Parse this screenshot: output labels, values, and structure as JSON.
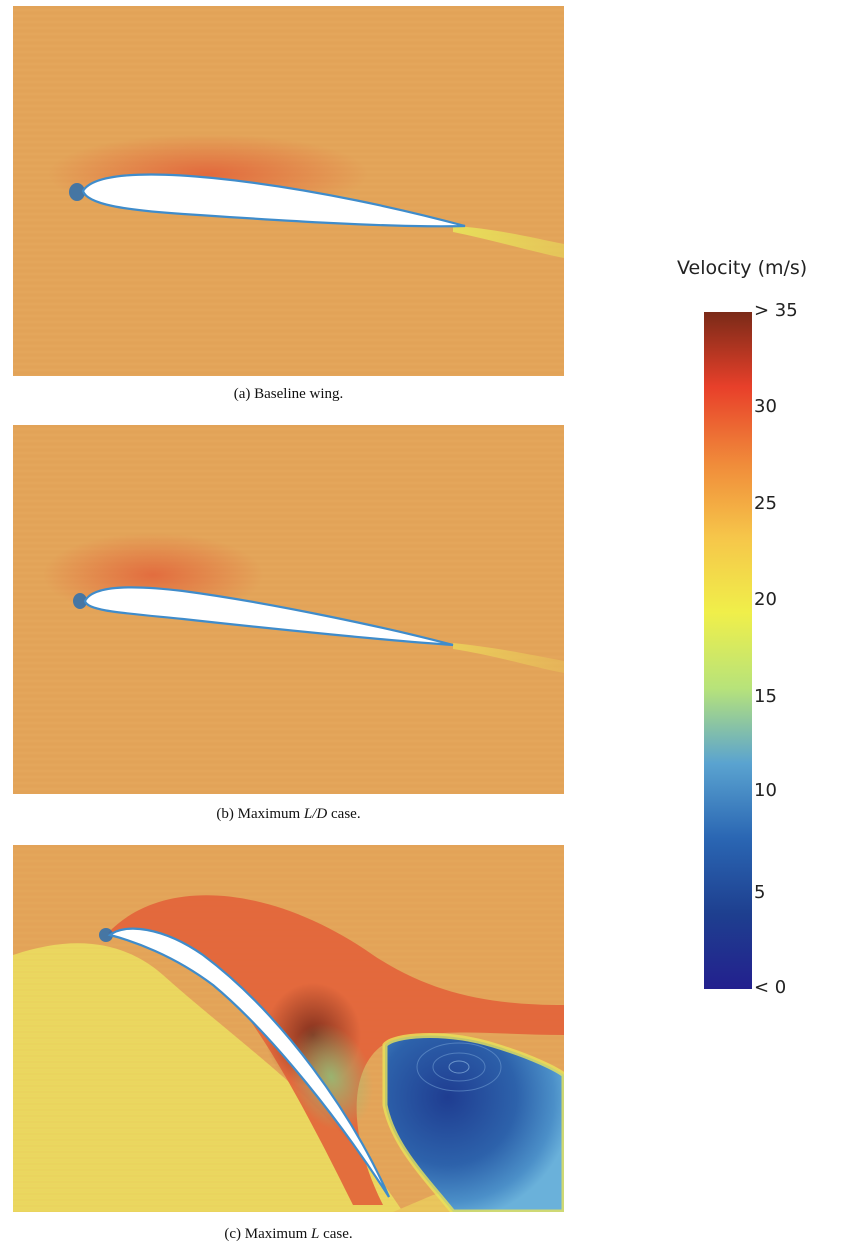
{
  "panels": [
    {
      "id": "a",
      "caption_prefix": "(a) Baseline wing.",
      "caption_math": "",
      "caption_suffix": ""
    },
    {
      "id": "b",
      "caption_prefix": "(b) Maximum ",
      "caption_math": "L/D",
      "caption_suffix": " case."
    },
    {
      "id": "c",
      "caption_prefix": "(c) Maximum ",
      "caption_math": "L",
      "caption_suffix": " case."
    }
  ],
  "colorbar": {
    "title": "Velocity (m/s)",
    "ticks": [
      "< 0",
      "5",
      "10",
      "15",
      "20",
      "25",
      "30",
      "> 35"
    ],
    "stops": [
      "#23208e",
      "#1e3f8f",
      "#2a66b3",
      "#5aa3d0",
      "#b7e37a",
      "#f0ef4a",
      "#f6c64a",
      "#f08a3a",
      "#e8402a",
      "#7a2a18"
    ]
  },
  "colors": {
    "freestream": "#e3a459",
    "high_speed": "#e06a3c",
    "peak": "#8a3a24",
    "slow": "#2f63a6",
    "wake": "#e8e05a"
  }
}
